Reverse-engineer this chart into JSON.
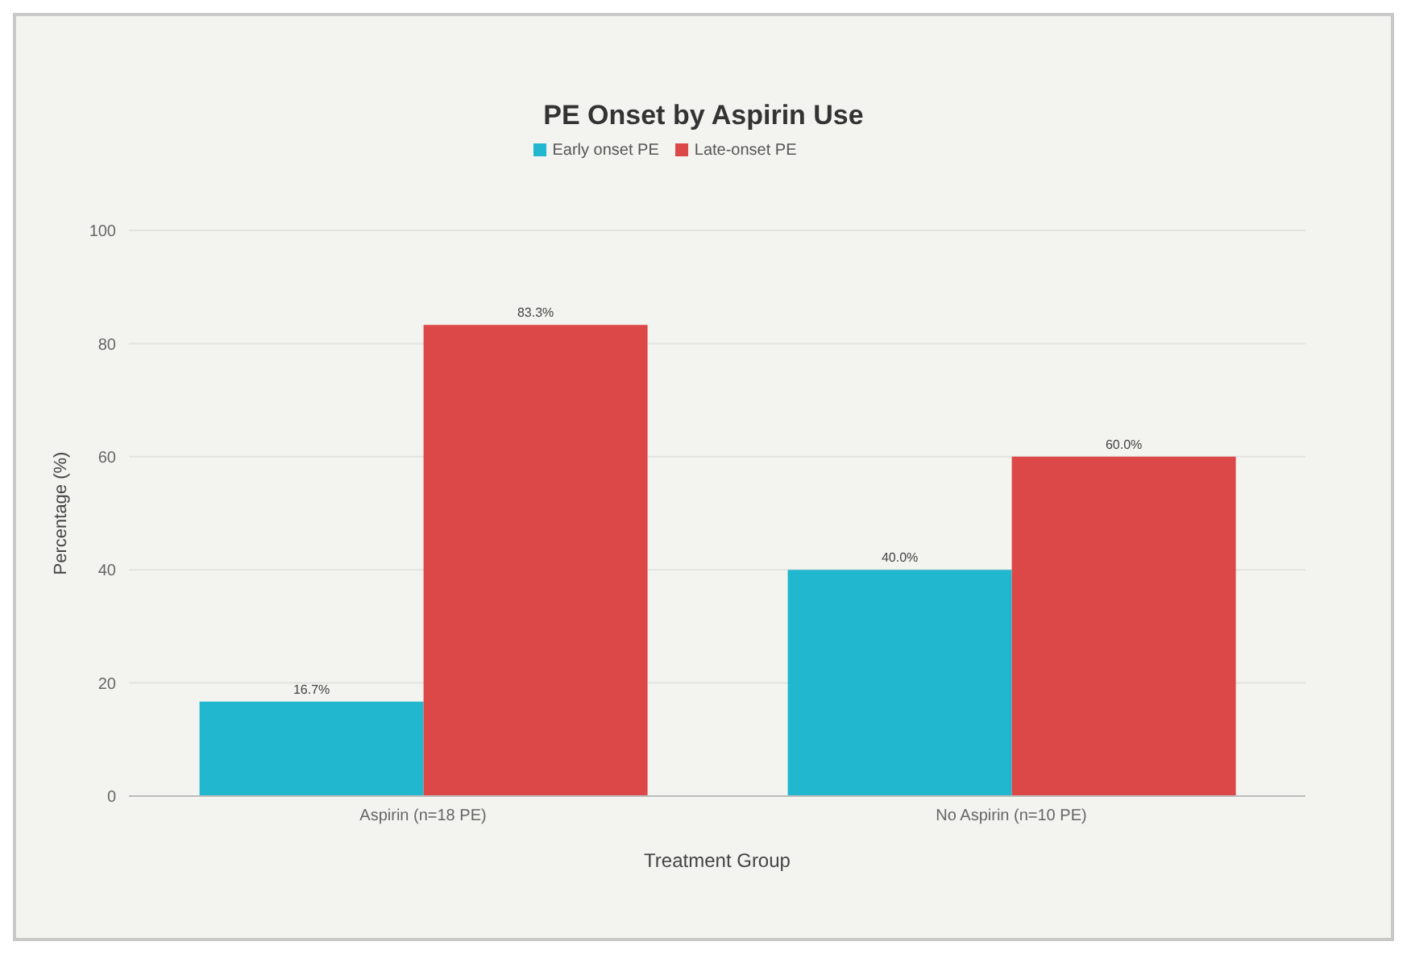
{
  "chart_data": {
    "type": "bar",
    "title": "PE Onset by Aspirin Use",
    "xlabel": "Treatment Group",
    "ylabel": "Percentage (%)",
    "categories": [
      "Aspirin (n=18 PE)",
      "No Aspirin (n=10 PE)"
    ],
    "series": [
      {
        "name": "Early onset PE",
        "color": "#21b8cf",
        "values": [
          16.7,
          40.0
        ],
        "value_labels": [
          "16.7%",
          "40.0%"
        ]
      },
      {
        "name": "Late-onset PE",
        "color": "#dc4848",
        "values": [
          83.3,
          60.0
        ],
        "value_labels": [
          "83.3%",
          "60.0%"
        ]
      }
    ],
    "ylim": [
      0,
      100
    ],
    "yticks": [
      0,
      20,
      40,
      60,
      80,
      100
    ],
    "grid": "y",
    "legend": "top"
  }
}
